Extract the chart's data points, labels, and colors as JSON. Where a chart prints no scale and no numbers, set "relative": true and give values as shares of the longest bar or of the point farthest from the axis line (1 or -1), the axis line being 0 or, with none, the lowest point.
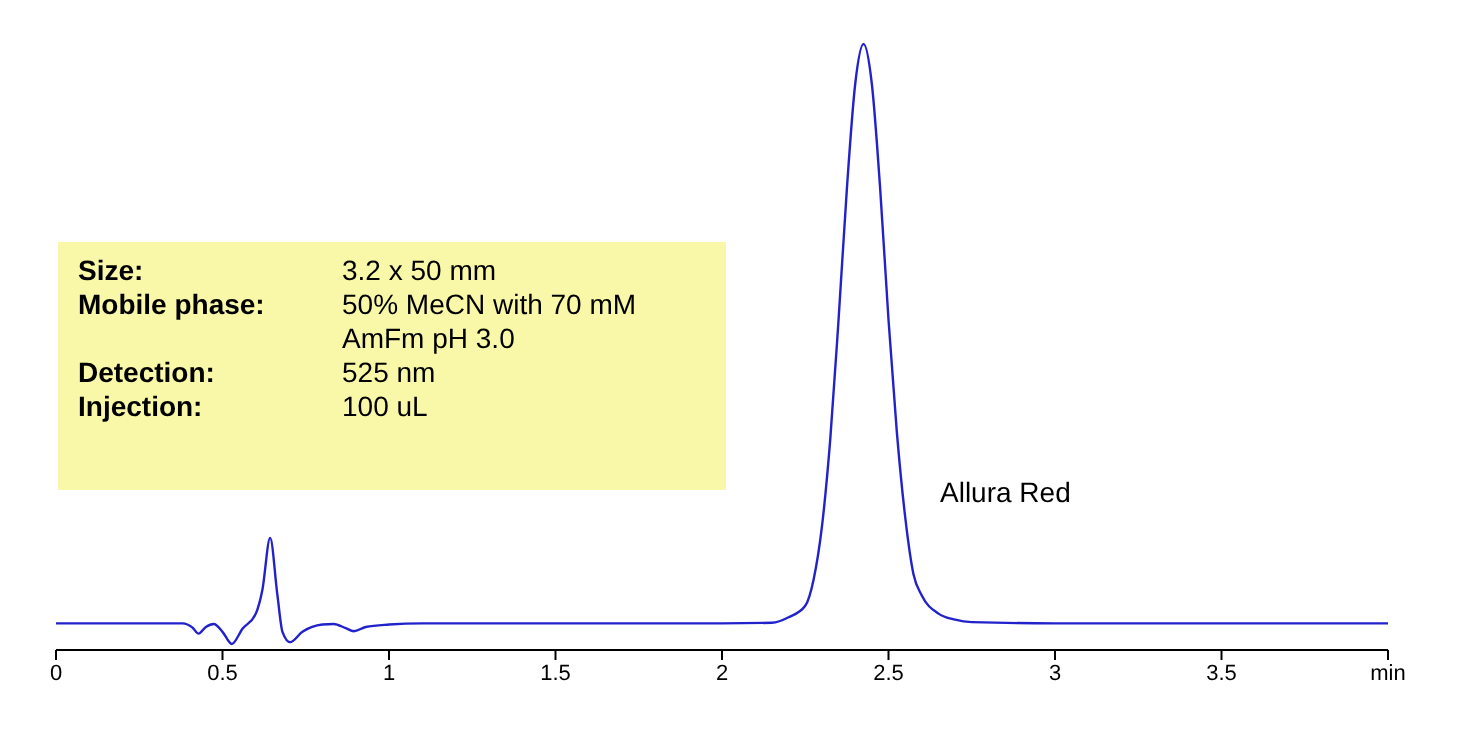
{
  "chart_data": {
    "type": "line",
    "relative": true,
    "x": [
      0,
      0.2,
      0.38,
      0.41,
      0.428,
      0.45,
      0.474,
      0.5,
      0.528,
      0.56,
      0.6,
      0.62,
      0.643,
      0.665,
      0.68,
      0.703,
      0.74,
      0.8,
      0.834,
      0.87,
      0.894,
      0.93,
      1.0,
      1.1,
      1.5,
      2.0,
      2.15,
      2.2,
      2.25,
      2.275,
      2.3,
      2.325,
      2.35,
      2.375,
      2.4,
      2.425,
      2.45,
      2.475,
      2.5,
      2.525,
      2.55,
      2.575,
      2.6,
      2.65,
      2.7,
      2.75,
      3,
      3.5,
      4
    ],
    "series": [
      {
        "color": "#2222cc",
        "values": [
          0.044,
          0.044,
          0.044,
          0.037,
          0.027,
          0.038,
          0.043,
          0.03,
          0.01,
          0.035,
          0.06,
          0.1,
          0.185,
          0.09,
          0.03,
          0.013,
          0.03,
          0.042,
          0.043,
          0.036,
          0.031,
          0.038,
          0.042,
          0.044,
          0.044,
          0.044,
          0.045,
          0.054,
          0.073,
          0.116,
          0.203,
          0.347,
          0.545,
          0.761,
          0.934,
          1.0,
          0.934,
          0.761,
          0.545,
          0.36,
          0.22,
          0.125,
          0.09,
          0.06,
          0.05,
          0.046,
          0.044,
          0.044,
          0.044
        ]
      }
    ],
    "xlim": [
      0,
      4
    ],
    "xticks": [
      0,
      0.5,
      1,
      1.5,
      2,
      2.5,
      3,
      3.5,
      {
        "value": 4,
        "label": "min"
      }
    ],
    "marker": "none",
    "line_style": "solid",
    "annotations": [
      "Allura Red",
      "Size:",
      "3.2 x 50 mm",
      "Mobile phase:",
      "50% MeCN with 70 mM\nAmFm pH 3.0",
      "Detection:",
      "525 nm",
      "Injection:",
      "100 uL"
    ]
  }
}
